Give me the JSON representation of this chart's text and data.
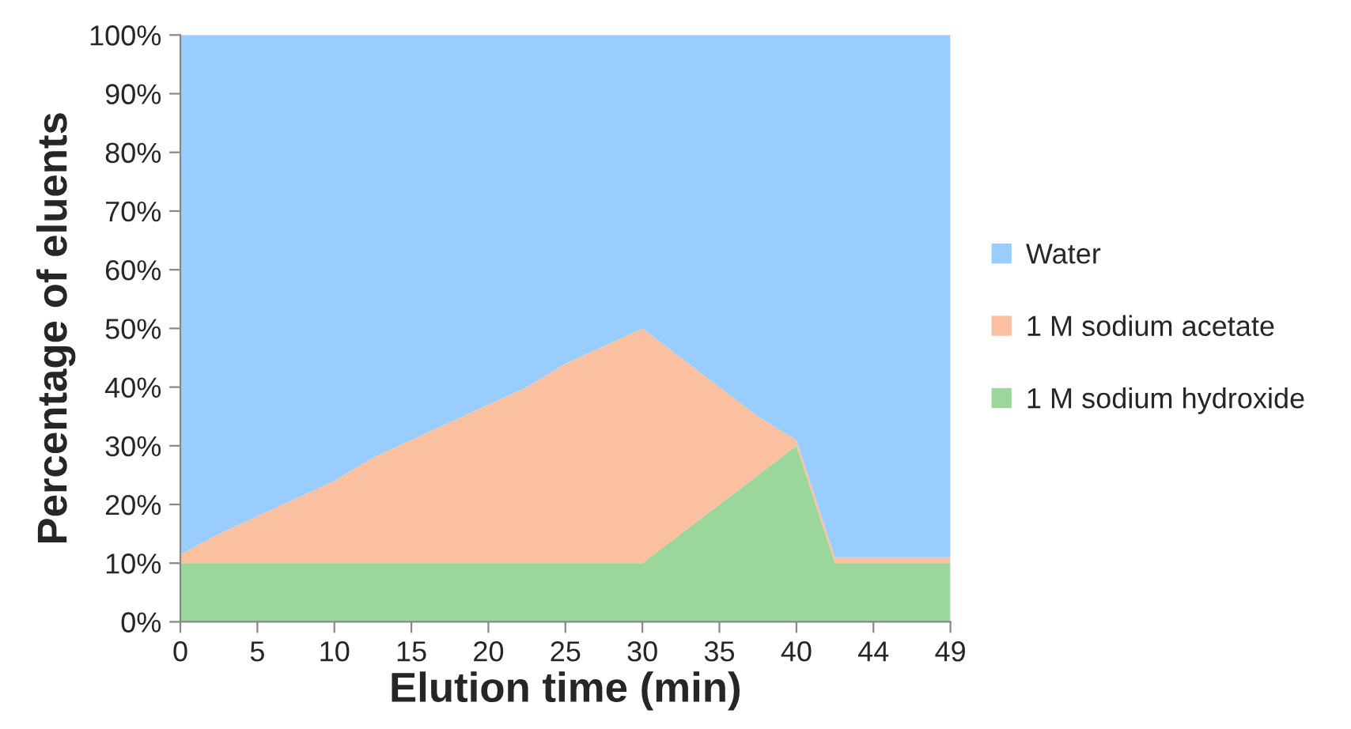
{
  "chart_data": {
    "type": "area",
    "stacked": true,
    "xlabel": "Elution time (min)",
    "ylabel": "Percentage of eluents",
    "categories": [
      "0",
      null,
      "5",
      null,
      "10",
      null,
      "15",
      null,
      "20",
      null,
      "25",
      null,
      "30",
      null,
      "35",
      null,
      "40",
      null,
      "44",
      null,
      "49"
    ],
    "series": [
      {
        "name": "1 M sodium hydroxide",
        "color": "#9bd79b",
        "values": [
          10,
          10,
          10,
          10,
          10,
          10,
          10,
          10,
          10,
          10,
          10,
          10,
          10,
          15,
          20,
          25,
          30,
          10,
          10,
          10,
          10
        ]
      },
      {
        "name": "1 M sodium acetate",
        "color": "#fac09f",
        "values": [
          1.5,
          5,
          8,
          11,
          14,
          18,
          21,
          24,
          27,
          30,
          34,
          37,
          40,
          30,
          20,
          10,
          1,
          1,
          1,
          1,
          1
        ]
      },
      {
        "name": "Water",
        "color": "#99ccff",
        "values": [
          88.5,
          85,
          82,
          79,
          76,
          72,
          69,
          66,
          63,
          60,
          56,
          53,
          50,
          55,
          60,
          65,
          69,
          89,
          89,
          89,
          89
        ]
      }
    ],
    "ylim": [
      0,
      100
    ],
    "yticks": [
      {
        "value": 0,
        "label": "0%"
      },
      {
        "value": 10,
        "label": "10%"
      },
      {
        "value": 20,
        "label": "20%"
      },
      {
        "value": 30,
        "label": "30%"
      },
      {
        "value": 40,
        "label": "40%"
      },
      {
        "value": 50,
        "label": "50%"
      },
      {
        "value": 60,
        "label": "60%"
      },
      {
        "value": 70,
        "label": "70%"
      },
      {
        "value": 80,
        "label": "80%"
      },
      {
        "value": 90,
        "label": "90%"
      },
      {
        "value": 100,
        "label": "100%"
      }
    ],
    "grid": false,
    "legend": "right"
  }
}
